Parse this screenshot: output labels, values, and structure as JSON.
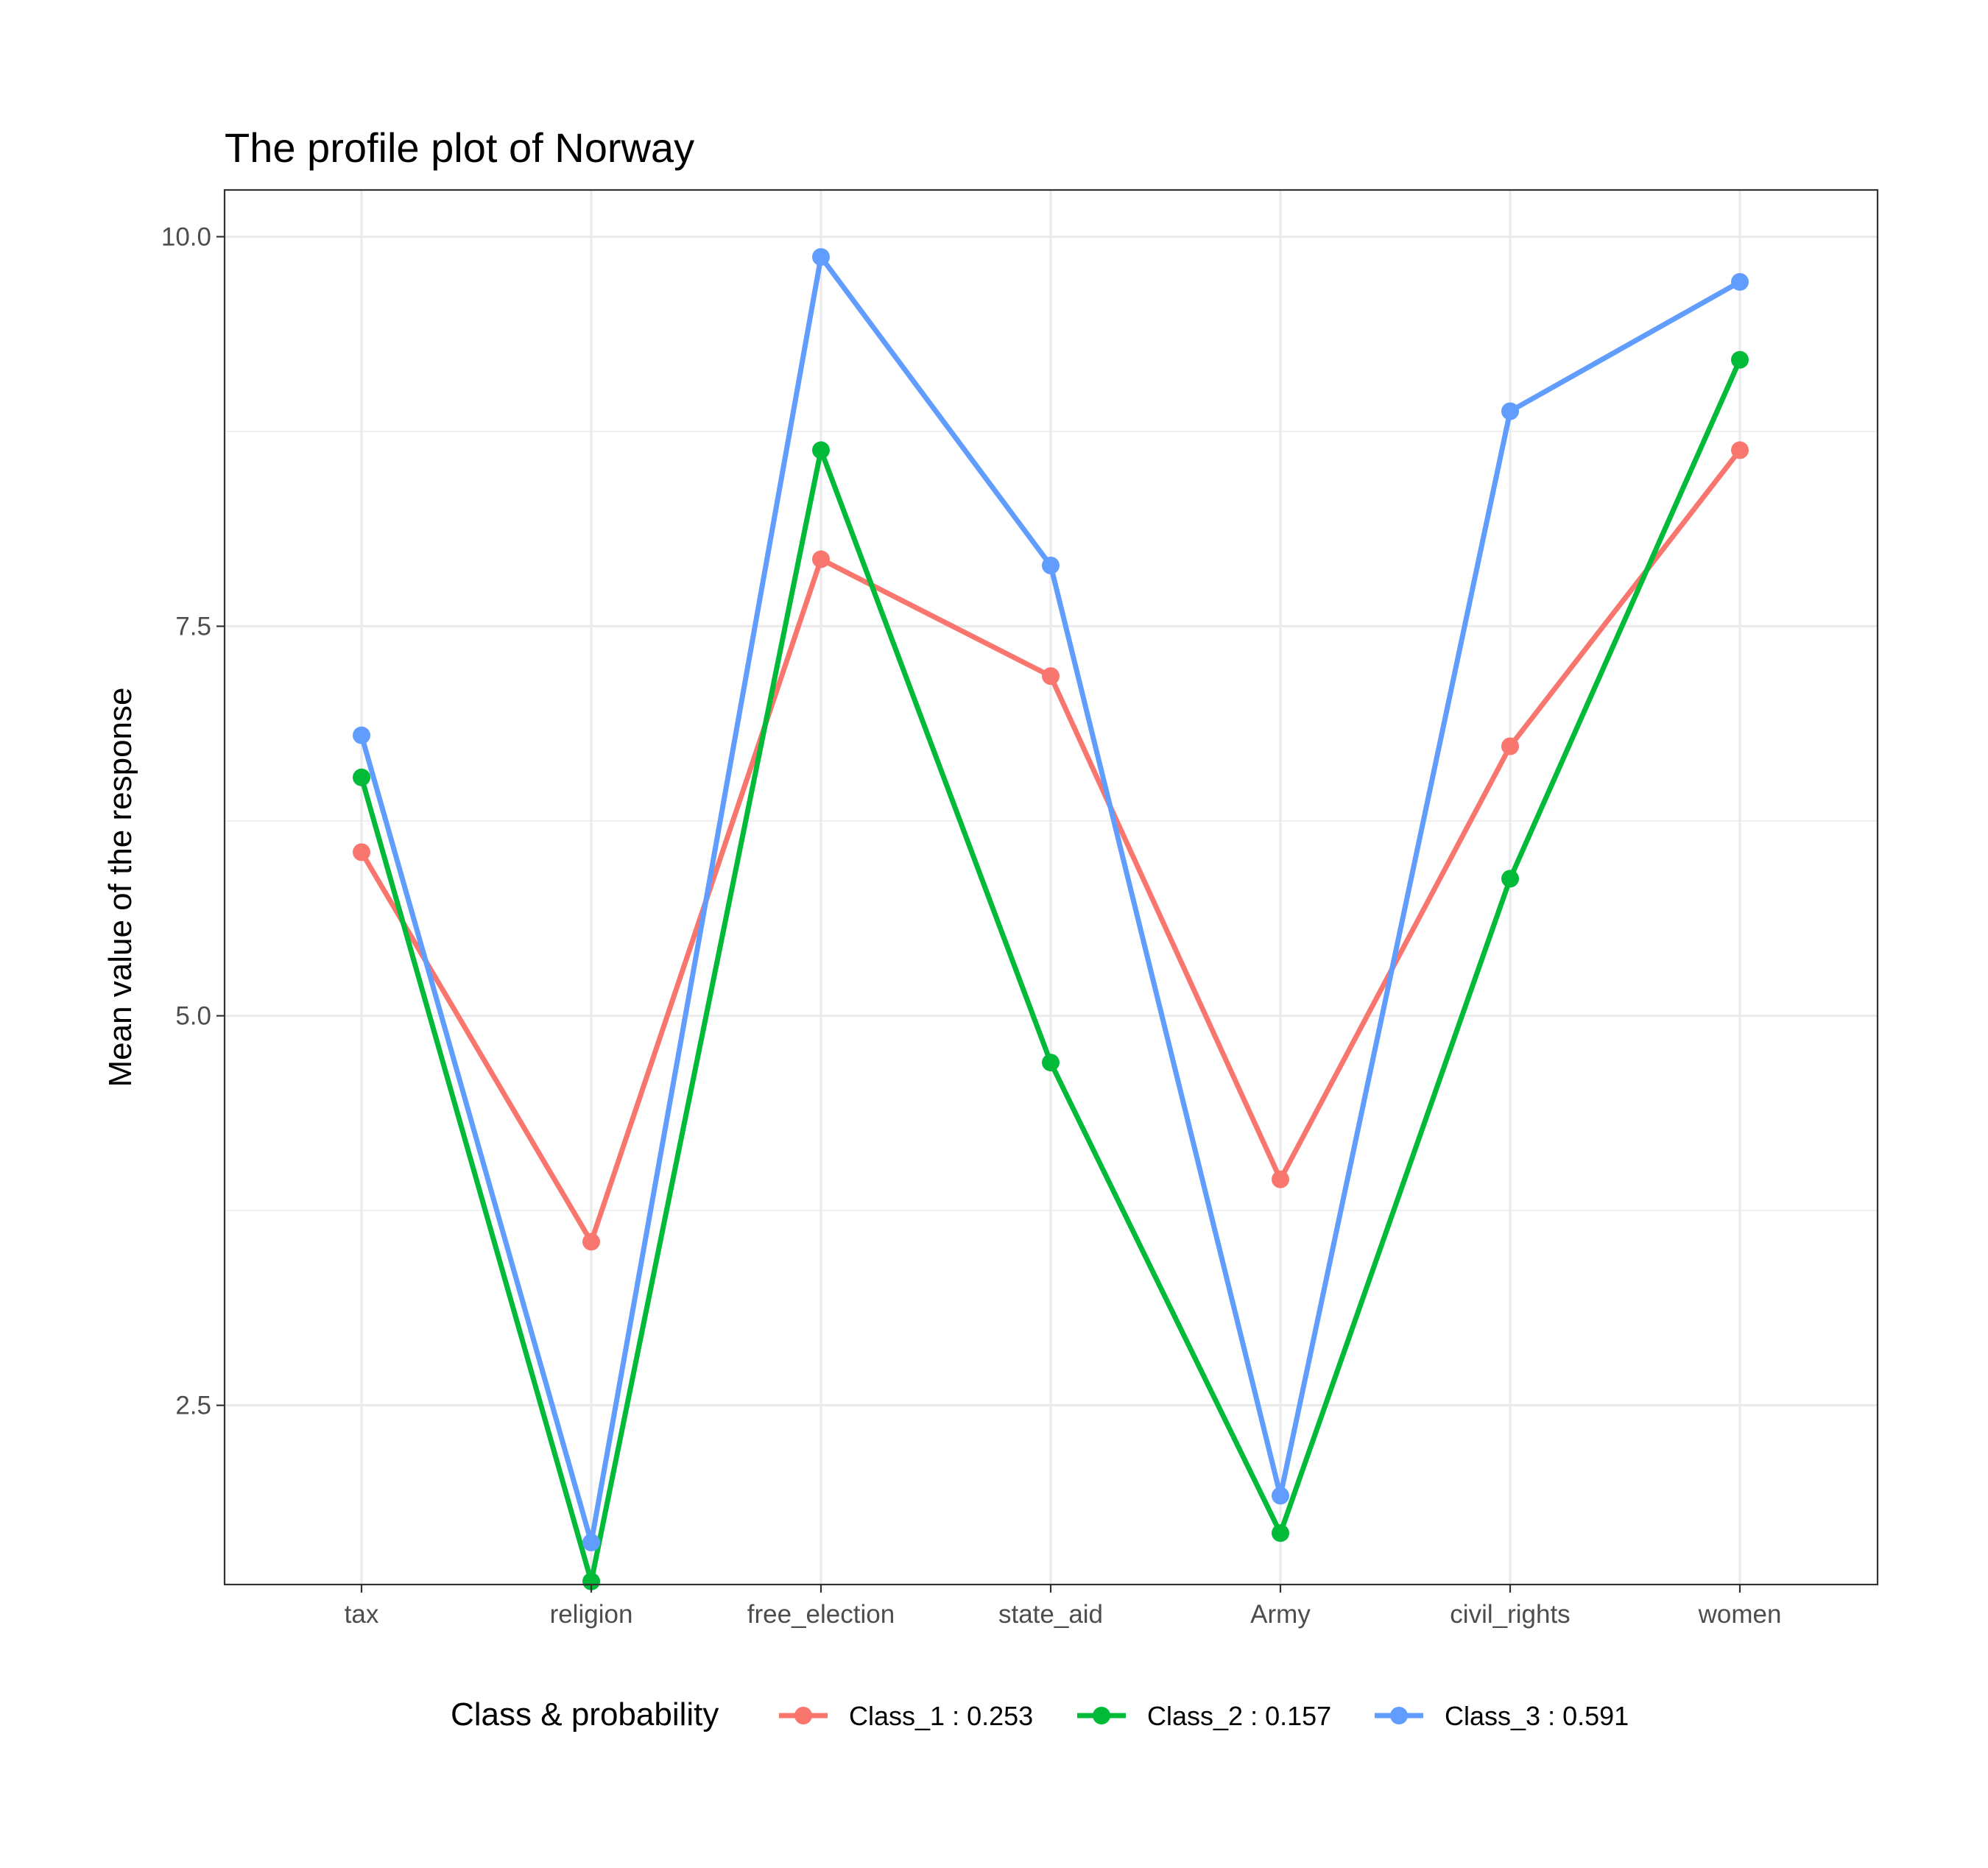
{
  "chart_data": {
    "type": "line",
    "title": "The profile plot of Norway",
    "xlabel": "",
    "ylabel": "Mean value of the response",
    "categories": [
      "tax",
      "religion",
      "free_election",
      "state_aid",
      "Army",
      "civil_rights",
      "women"
    ],
    "yticks": [
      "2.5",
      "5.0",
      "7.5",
      "10.0"
    ],
    "ylim": [
      1.35,
      10.3
    ],
    "grid": true,
    "legend": {
      "title": "Class & probability",
      "position": "bottom"
    },
    "series": [
      {
        "name": "Class_1 : 0.253",
        "color": "#F8766D",
        "values": [
          6.05,
          3.55,
          7.93,
          7.18,
          3.95,
          6.73,
          8.63
        ]
      },
      {
        "name": "Class_2 : 0.157",
        "color": "#00BA38",
        "values": [
          6.53,
          1.37,
          8.63,
          4.7,
          1.68,
          5.88,
          9.21
        ]
      },
      {
        "name": "Class_3 : 0.591",
        "color": "#619CFF",
        "values": [
          6.8,
          1.62,
          9.87,
          7.89,
          1.92,
          8.88,
          9.71
        ]
      }
    ]
  }
}
